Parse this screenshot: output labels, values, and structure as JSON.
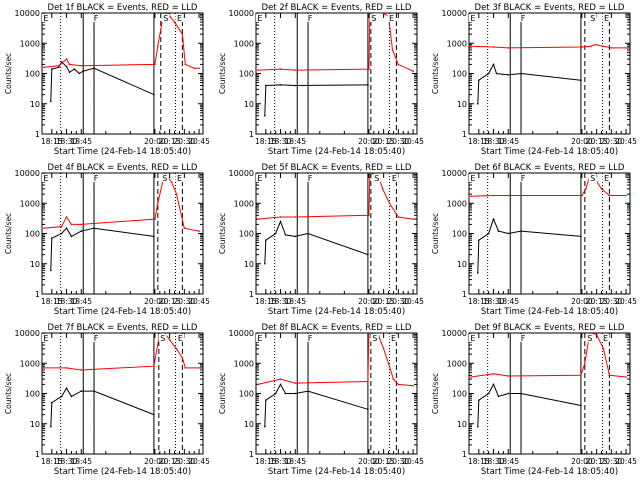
{
  "chart_data": {
    "type": "line",
    "yscale": "log",
    "ylim": [
      1,
      10000
    ],
    "xlim": [
      "18:05",
      "20:49"
    ],
    "xtick_labels": [
      "18:15",
      "18:30",
      "18:45",
      "20:00",
      "20:15",
      "20:30",
      "20:45"
    ],
    "ytick_labels": [
      "1",
      "10",
      "100",
      "1000",
      "10000"
    ],
    "series_colors": {
      "events": "#000000",
      "lld": "#ff0000"
    },
    "panels": [
      {
        "title": "Det 1f BLACK = Events, RED = LLD",
        "xlabel": "Start Time (24-Feb-14 18:05:40)",
        "ylabel": "Counts/sec",
        "markers": [
          {
            "label": "E",
            "x": "18:07"
          },
          {
            "label": "F",
            "x": "18:58"
          },
          {
            "label": "S",
            "x": "20:09"
          },
          {
            "label": "E",
            "x": "20:23"
          }
        ],
        "solid_lines_x": [
          "18:47",
          "18:58",
          "19:59"
        ],
        "dotted_lines_x": [
          "18:24",
          "18:58",
          "20:21"
        ],
        "dashed_lines_x": [
          "20:06",
          "20:28"
        ],
        "series": [
          {
            "name": "events",
            "x": [
              "18:14",
              "18:15",
              "18:22",
              "18:25",
              "18:30",
              "18:33",
              "18:38",
              "18:43",
              "18:47",
              "18:58",
              "19:59"
            ],
            "y": [
              12,
              140,
              160,
              240,
              170,
              110,
              140,
              100,
              120,
              150,
              20
            ]
          },
          {
            "name": "lld",
            "x": [
              "18:07",
              "18:22",
              "18:30",
              "18:33",
              "18:45",
              "20:00",
              "20:03",
              "20:09",
              "20:14",
              "20:20",
              "20:28",
              "20:31",
              "20:40",
              "20:45"
            ],
            "y": [
              160,
              180,
              300,
              200,
              180,
              200,
              800,
              10000,
              9000,
              5000,
              2000,
              200,
              150,
              150
            ]
          }
        ]
      },
      {
        "title": "Det 2f BLACK = Events, RED = LLD",
        "xlabel": "Start Time (24-Feb-14 18:05:40)",
        "ylabel": "Counts/sec",
        "markers": [
          {
            "label": "E",
            "x": "18:07"
          },
          {
            "label": "F",
            "x": "18:58"
          },
          {
            "label": "S",
            "x": "20:03"
          },
          {
            "label": "E",
            "x": "20:21"
          }
        ],
        "solid_lines_x": [
          "18:47",
          "18:58",
          "19:59"
        ],
        "dotted_lines_x": [
          "18:24",
          "18:58",
          "20:21"
        ],
        "dashed_lines_x": [
          "20:02",
          "20:28"
        ],
        "series": [
          {
            "name": "events",
            "x": [
              "18:14",
              "18:15",
              "18:30",
              "18:45",
              "19:59"
            ],
            "y": [
              4,
              40,
              42,
              40,
              42
            ]
          },
          {
            "name": "lld",
            "x": [
              "18:07",
              "18:30",
              "18:45",
              "20:00",
              "20:01",
              "20:03",
              "20:14",
              "20:20",
              "20:24",
              "20:30",
              "20:45"
            ],
            "y": [
              130,
              140,
              130,
              140,
              10000,
              10000,
              10000,
              8000,
              600,
              200,
              120
            ]
          }
        ]
      },
      {
        "title": "Det 3f BLACK = Events, RED = LLD",
        "xlabel": "Start Time (24-Feb-14 18:05:40)",
        "ylabel": "Counts/sec",
        "markers": [
          {
            "label": "E",
            "x": "18:07"
          },
          {
            "label": "F",
            "x": "18:58"
          },
          {
            "label": "S",
            "x": "20:09"
          },
          {
            "label": "E",
            "x": "20:23"
          }
        ],
        "solid_lines_x": [
          "18:47",
          "18:58",
          "19:59"
        ],
        "dotted_lines_x": [
          "18:24",
          "18:58",
          "20:21"
        ],
        "dashed_lines_x": [
          "20:03",
          "20:28"
        ],
        "series": [
          {
            "name": "events",
            "x": [
              "18:14",
              "18:15",
              "18:25",
              "18:30",
              "18:33",
              "18:45",
              "18:58",
              "19:59"
            ],
            "y": [
              10,
              60,
              100,
              200,
              100,
              90,
              100,
              60
            ]
          },
          {
            "name": "lld",
            "x": [
              "18:07",
              "18:30",
              "18:45",
              "20:00",
              "20:09",
              "20:14",
              "20:30",
              "20:45"
            ],
            "y": [
              800,
              750,
              700,
              750,
              800,
              900,
              700,
              700
            ]
          }
        ]
      },
      {
        "title": "Det 4f BLACK = Events, RED = LLD",
        "xlabel": "Start Time (24-Feb-14 18:05:40)",
        "ylabel": "Counts/sec",
        "markers": [
          {
            "label": "E",
            "x": "18:07"
          },
          {
            "label": "F",
            "x": "18:58"
          },
          {
            "label": "S",
            "x": "20:08"
          },
          {
            "label": "E",
            "x": "20:23"
          }
        ],
        "solid_lines_x": [
          "18:47",
          "18:58",
          "19:59"
        ],
        "dotted_lines_x": [
          "18:24",
          "18:58",
          "20:21"
        ],
        "dashed_lines_x": [
          "20:03",
          "20:28"
        ],
        "series": [
          {
            "name": "events",
            "x": [
              "18:14",
              "18:15",
              "18:25",
              "18:30",
              "18:35",
              "18:45",
              "18:58",
              "19:59"
            ],
            "y": [
              6,
              70,
              100,
              150,
              80,
              120,
              150,
              80
            ]
          },
          {
            "name": "lld",
            "x": [
              "18:07",
              "18:25",
              "18:30",
              "18:35",
              "18:45",
              "20:00",
              "20:03",
              "20:10",
              "20:17",
              "20:22",
              "20:30",
              "20:45"
            ],
            "y": [
              150,
              170,
              350,
              200,
              200,
              300,
              1000,
              10000,
              5000,
              2000,
              150,
              120
            ]
          }
        ]
      },
      {
        "title": "Det 5f BLACK = Events, RED = LLD",
        "xlabel": "Start Time (24-Feb-14 18:05:40)",
        "ylabel": "Counts/sec",
        "markers": [
          {
            "label": "E",
            "x": "18:07"
          },
          {
            "label": "F",
            "x": "18:58"
          },
          {
            "label": "S",
            "x": "20:06"
          },
          {
            "label": "E",
            "x": "20:24"
          }
        ],
        "solid_lines_x": [
          "18:47",
          "18:58",
          "19:59"
        ],
        "dotted_lines_x": [
          "18:24",
          "18:58",
          "20:21"
        ],
        "dashed_lines_x": [
          "20:02",
          "20:28"
        ],
        "series": [
          {
            "name": "events",
            "x": [
              "18:14",
              "18:15",
              "18:25",
              "18:30",
              "18:35",
              "18:45",
              "18:58",
              "19:59"
            ],
            "y": [
              10,
              60,
              100,
              250,
              90,
              80,
              100,
              20
            ]
          },
          {
            "name": "lld",
            "x": [
              "18:07",
              "18:30",
              "18:45",
              "20:00",
              "20:01",
              "20:10",
              "20:14",
              "20:21",
              "20:30",
              "20:45"
            ],
            "y": [
              300,
              350,
              350,
              400,
              10000,
              8000,
              3000,
              1000,
              350,
              300
            ]
          }
        ]
      },
      {
        "title": "Det 6f BLACK = Events, RED = LLD",
        "xlabel": "Start Time (24-Feb-14 18:05:40)",
        "ylabel": "Counts/sec",
        "markers": [
          {
            "label": "E",
            "x": "18:07"
          },
          {
            "label": "F",
            "x": "18:58"
          },
          {
            "label": "S",
            "x": "20:09"
          },
          {
            "label": "E",
            "x": "20:23"
          }
        ],
        "solid_lines_x": [
          "18:47",
          "18:58",
          "19:59"
        ],
        "dotted_lines_x": [
          "18:24",
          "18:58",
          "20:21"
        ],
        "dashed_lines_x": [
          "20:03",
          "20:28"
        ],
        "series": [
          {
            "name": "events",
            "x": [
              "18:14",
              "18:15",
              "18:25",
              "18:30",
              "18:35",
              "18:45",
              "18:58",
              "19:59"
            ],
            "y": [
              5,
              60,
              100,
              300,
              120,
              100,
              120,
              80
            ]
          },
          {
            "name": "lld",
            "x": [
              "18:07",
              "18:30",
              "18:45",
              "20:00",
              "20:04",
              "20:09",
              "20:14",
              "20:20",
              "20:28",
              "20:45"
            ],
            "y": [
              1700,
              1800,
              1800,
              1800,
              3000,
              10000,
              6000,
              3000,
              1800,
              1800
            ]
          }
        ]
      },
      {
        "title": "Det 7f BLACK = Events, RED = LLD",
        "xlabel": "Start Time (24-Feb-14 18:05:40)",
        "ylabel": "Counts/sec",
        "markers": [
          {
            "label": "E",
            "x": "18:07"
          },
          {
            "label": "F",
            "x": "18:58"
          },
          {
            "label": "S",
            "x": "20:06"
          },
          {
            "label": "E",
            "x": "20:24"
          }
        ],
        "solid_lines_x": [
          "18:47",
          "18:58",
          "19:59"
        ],
        "dotted_lines_x": [
          "18:24",
          "18:58",
          "20:21"
        ],
        "dashed_lines_x": [
          "20:04",
          "20:28"
        ],
        "series": [
          {
            "name": "events",
            "x": [
              "18:14",
              "18:15",
              "18:25",
              "18:30",
              "18:35",
              "18:45",
              "18:58",
              "19:59"
            ],
            "y": [
              8,
              50,
              80,
              150,
              80,
              120,
              120,
              20
            ]
          },
          {
            "name": "lld",
            "x": [
              "18:07",
              "18:30",
              "18:45",
              "19:59",
              "20:05",
              "20:10",
              "20:15",
              "20:22",
              "20:28",
              "20:31",
              "20:45"
            ],
            "y": [
              700,
              700,
              600,
              800,
              10000,
              10000,
              6000,
              3000,
              1500,
              700,
              700
            ]
          }
        ]
      },
      {
        "title": "Det 8f BLACK = Events, RED = LLD",
        "xlabel": "Start Time (24-Feb-14 18:05:40)",
        "ylabel": "Counts/sec",
        "markers": [
          {
            "label": "E",
            "x": "18:07"
          },
          {
            "label": "F",
            "x": "18:58"
          },
          {
            "label": "S",
            "x": "20:04"
          },
          {
            "label": "E",
            "x": "20:23"
          }
        ],
        "solid_lines_x": [
          "18:47",
          "18:58",
          "19:59"
        ],
        "dotted_lines_x": [
          "18:24",
          "18:58",
          "20:21"
        ],
        "dashed_lines_x": [
          "20:02",
          "20:28"
        ],
        "series": [
          {
            "name": "events",
            "x": [
              "18:14",
              "18:15",
              "18:25",
              "18:30",
              "18:35",
              "18:45",
              "18:58",
              "19:59"
            ],
            "y": [
              8,
              60,
              100,
              200,
              100,
              100,
              120,
              30
            ]
          },
          {
            "name": "lld",
            "x": [
              "18:07",
              "18:30",
              "18:45",
              "19:59",
              "20:00",
              "20:10",
              "20:15",
              "20:20",
              "20:25",
              "20:30",
              "20:45"
            ],
            "y": [
              200,
              300,
              220,
              250,
              10000,
              8000,
              3000,
              1000,
              300,
              200,
              180
            ]
          }
        ]
      },
      {
        "title": "Det 9f BLACK = Events, RED = LLD",
        "xlabel": "Start Time (24-Feb-14 18:05:40)",
        "ylabel": "Counts/sec",
        "markers": [
          {
            "label": "E",
            "x": "18:07"
          },
          {
            "label": "F",
            "x": "18:58"
          },
          {
            "label": "S",
            "x": "20:06"
          },
          {
            "label": "E",
            "x": "20:22"
          }
        ],
        "solid_lines_x": [
          "18:47",
          "18:58",
          "19:59"
        ],
        "dotted_lines_x": [
          "18:24",
          "18:58",
          "20:21"
        ],
        "dashed_lines_x": [
          "20:03",
          "20:28"
        ],
        "series": [
          {
            "name": "events",
            "x": [
              "18:14",
              "18:15",
              "18:25",
              "18:30",
              "18:35",
              "18:45",
              "18:58",
              "19:59"
            ],
            "y": [
              8,
              60,
              100,
              200,
              80,
              100,
              100,
              40
            ]
          },
          {
            "name": "lld",
            "x": [
              "18:07",
              "18:30",
              "18:45",
              "19:59",
              "20:03",
              "20:08",
              "20:15",
              "20:22",
              "20:28",
              "20:45"
            ],
            "y": [
              350,
              450,
              380,
              400,
              1000,
              10000,
              9000,
              3000,
              400,
              350
            ]
          }
        ]
      }
    ]
  }
}
